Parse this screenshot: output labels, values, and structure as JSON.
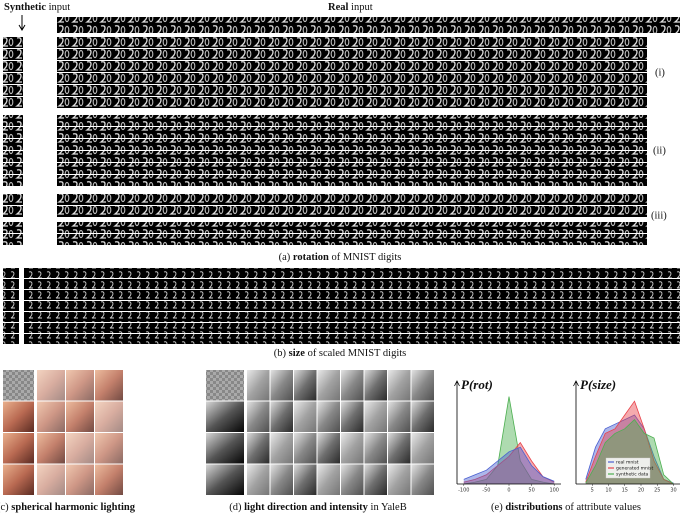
{
  "header": {
    "synthetic": {
      "bold": "Synthetic",
      "rest": "input"
    },
    "real": {
      "bold": "Real",
      "rest": "input"
    }
  },
  "groups": [
    "(i)",
    "(ii)",
    "(iii)"
  ],
  "captions": {
    "a": {
      "prefix": "(a)",
      "bold": "rotation",
      "rest": "of MNIST digits"
    },
    "b": {
      "prefix": "(b)",
      "bold": "size",
      "rest": "of scaled MNIST digits"
    },
    "c": {
      "prefix": "(c)",
      "bold": "spherical harmonic lighting",
      "rest": ""
    },
    "d": {
      "prefix": "(d)",
      "bold": "light direction and intensity",
      "rest": "in YaleB"
    },
    "e": {
      "prefix": "(e)",
      "bold": "distributions",
      "rest": "of attribute values"
    }
  },
  "chart_data": [
    {
      "type": "area",
      "title": "P(rot)",
      "x": [
        -100,
        -75,
        -50,
        -25,
        0,
        25,
        50,
        75,
        100
      ],
      "xlim": [
        -115,
        115
      ],
      "xticks": [
        -100,
        -50,
        0,
        50,
        100
      ],
      "ylim": [
        0,
        1
      ],
      "series": [
        {
          "color": "#4caf50",
          "values": [
            0,
            0.02,
            0.05,
            0.2,
            0.95,
            0.25,
            0.05,
            0.02,
            0
          ]
        },
        {
          "color": "#e8434b",
          "values": [
            0.02,
            0.05,
            0.1,
            0.2,
            0.3,
            0.45,
            0.25,
            0.08,
            0.02
          ]
        },
        {
          "color": "#4a5fd0",
          "values": [
            0.05,
            0.1,
            0.15,
            0.25,
            0.35,
            0.4,
            0.2,
            0.08,
            0.03
          ]
        }
      ]
    },
    {
      "type": "area",
      "title": "P(size)",
      "x": [
        3,
        6,
        9,
        12,
        15,
        18,
        21,
        24,
        27,
        30
      ],
      "xlim": [
        0,
        32
      ],
      "xticks": [
        5,
        10,
        15,
        20,
        25,
        30
      ],
      "ylim": [
        0,
        1
      ],
      "legend": "lower center",
      "series": [
        {
          "name": "real mnist",
          "color": "#4a5fd0",
          "values": [
            0.05,
            0.4,
            0.6,
            0.65,
            0.7,
            0.75,
            0.6,
            0.3,
            0.05,
            0.01
          ]
        },
        {
          "name": "generated mnist",
          "color": "#e8434b",
          "values": [
            0.02,
            0.3,
            0.55,
            0.6,
            0.75,
            0.9,
            0.6,
            0.25,
            0.05,
            0
          ]
        },
        {
          "name": "synthetic data",
          "color": "#4caf50",
          "values": [
            0.01,
            0.2,
            0.45,
            0.55,
            0.6,
            0.7,
            0.55,
            0.5,
            0.1,
            0
          ]
        }
      ]
    }
  ]
}
